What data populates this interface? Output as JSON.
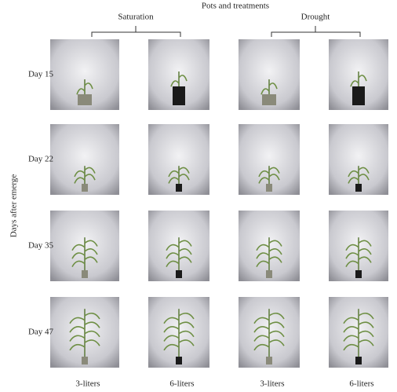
{
  "title": "Pots and treatments",
  "groups": [
    "Saturation",
    "Drought"
  ],
  "y_label": "Days after emerge",
  "rows": [
    "Day 15",
    "Day 22",
    "Day 35",
    "Day 47"
  ],
  "columns": [
    "3-liters",
    "6-liters",
    "3-liters",
    "6-liters"
  ]
}
